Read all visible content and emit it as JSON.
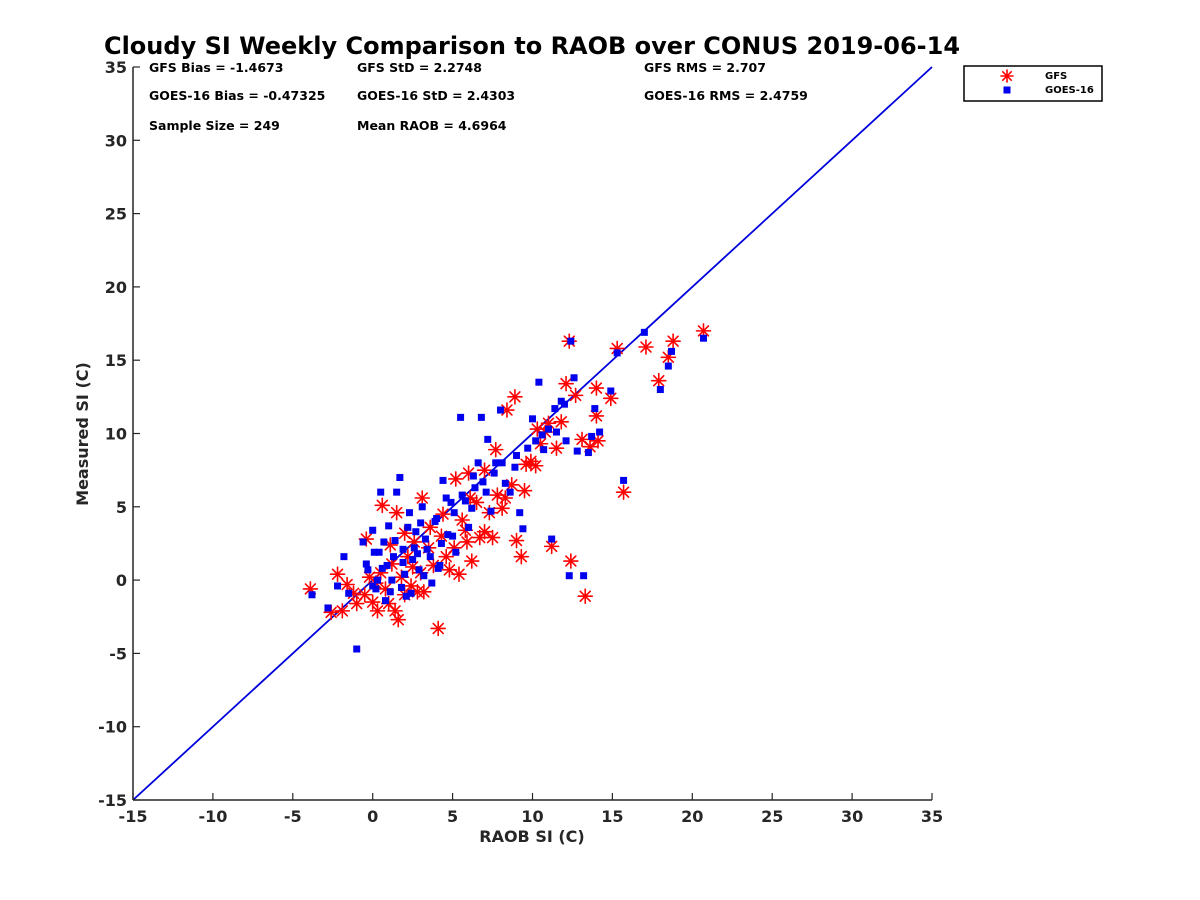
{
  "chart_data": {
    "type": "scatter",
    "title": "Cloudy SI Weekly Comparison to RAOB over CONUS 2019-06-14",
    "xlabel": "RAOB SI (C)",
    "ylabel": "Measured SI (C)",
    "xlim": [
      -15,
      35
    ],
    "ylim": [
      -15,
      35
    ],
    "xticks": [
      -15,
      -10,
      -5,
      0,
      5,
      10,
      15,
      20,
      25,
      30,
      35
    ],
    "yticks": [
      -15,
      -10,
      -5,
      0,
      5,
      10,
      15,
      20,
      25,
      30,
      35
    ],
    "grid": false,
    "legend_placement": "outside-top-right",
    "reference_line": {
      "x": [
        -15,
        35
      ],
      "y": [
        -15,
        35
      ],
      "color": "#0000dd"
    },
    "stats": [
      "GFS Bias = -1.4673",
      "GFS StD = 2.2748",
      "GFS RMS = 2.707",
      "GOES-16 Bias = -0.47325",
      "GOES-16 StD = 2.4303",
      "GOES-16 RMS = 2.4759",
      "Sample Size = 249",
      "Mean RAOB = 4.6964"
    ],
    "series": [
      {
        "name": "GFS",
        "marker": "asterisk",
        "color": "#ff0000",
        "points": [
          [
            -3.9,
            -0.6
          ],
          [
            -2.6,
            -2.2
          ],
          [
            -2.2,
            0.4
          ],
          [
            -1.9,
            -2.1
          ],
          [
            -1.6,
            -0.3
          ],
          [
            -1.0,
            -1.6
          ],
          [
            -0.5,
            -1.0
          ],
          [
            -0.2,
            0.2
          ],
          [
            0.0,
            -1.5
          ],
          [
            0.3,
            -2.1
          ],
          [
            0.5,
            0.5
          ],
          [
            0.8,
            -0.6
          ],
          [
            1.0,
            -1.6
          ],
          [
            1.2,
            1.1
          ],
          [
            1.4,
            -2.1
          ],
          [
            1.6,
            -2.7
          ],
          [
            1.8,
            0.2
          ],
          [
            2.0,
            -1.0
          ],
          [
            2.2,
            1.6
          ],
          [
            2.4,
            -0.4
          ],
          [
            2.6,
            2.6
          ],
          [
            2.8,
            -0.8
          ],
          [
            3.0,
            0.5
          ],
          [
            3.2,
            -0.8
          ],
          [
            3.5,
            2.2
          ],
          [
            3.8,
            1.0
          ],
          [
            4.1,
            -3.3
          ],
          [
            4.3,
            3.0
          ],
          [
            4.6,
            1.6
          ],
          [
            4.8,
            0.7
          ],
          [
            5.1,
            2.2
          ],
          [
            5.4,
            0.4
          ],
          [
            5.6,
            4.1
          ],
          [
            5.9,
            2.6
          ],
          [
            6.2,
            1.3
          ],
          [
            6.5,
            5.3
          ],
          [
            6.7,
            2.9
          ],
          [
            7.0,
            3.3
          ],
          [
            7.3,
            4.6
          ],
          [
            7.5,
            2.9
          ],
          [
            7.8,
            5.8
          ],
          [
            8.1,
            4.9
          ],
          [
            8.3,
            5.6
          ],
          [
            8.7,
            6.5
          ],
          [
            9.0,
            2.7
          ],
          [
            9.3,
            1.6
          ],
          [
            9.6,
            7.9
          ],
          [
            9.9,
            8.1
          ],
          [
            10.2,
            7.8
          ],
          [
            10.5,
            9.3
          ],
          [
            10.8,
            10.1
          ],
          [
            11.2,
            2.3
          ],
          [
            11.5,
            9.0
          ],
          [
            11.8,
            10.8
          ],
          [
            12.1,
            13.4
          ],
          [
            12.4,
            1.3
          ],
          [
            12.7,
            12.6
          ],
          [
            13.1,
            9.6
          ],
          [
            13.3,
            -1.1
          ],
          [
            13.6,
            9.1
          ],
          [
            14.0,
            13.1
          ],
          [
            14.1,
            9.5
          ],
          [
            14.9,
            12.4
          ],
          [
            15.3,
            15.8
          ],
          [
            15.7,
            6.0
          ],
          [
            17.1,
            15.9
          ],
          [
            17.9,
            13.6
          ],
          [
            18.5,
            15.2
          ],
          [
            18.8,
            16.3
          ],
          [
            20.7,
            17.0
          ],
          [
            12.3,
            16.3
          ],
          [
            8.9,
            12.5
          ],
          [
            6.0,
            7.3
          ],
          [
            5.2,
            6.9
          ],
          [
            1.5,
            4.6
          ],
          [
            3.1,
            5.6
          ],
          [
            0.6,
            5.1
          ],
          [
            7.0,
            7.5
          ],
          [
            9.5,
            6.1
          ],
          [
            10.3,
            10.3
          ],
          [
            4.4,
            4.5
          ],
          [
            2.0,
            3.2
          ],
          [
            -0.4,
            2.8
          ],
          [
            1.1,
            2.4
          ],
          [
            3.6,
            3.6
          ],
          [
            6.1,
            5.6
          ],
          [
            7.7,
            8.9
          ],
          [
            11.0,
            10.7
          ],
          [
            -1.2,
            -0.9
          ],
          [
            0.2,
            -0.2
          ],
          [
            2.5,
            0.9
          ],
          [
            5.8,
            3.4
          ],
          [
            8.4,
            11.6
          ],
          [
            14.0,
            11.2
          ]
        ]
      },
      {
        "name": "GOES-16",
        "marker": "square",
        "color": "#0000ee",
        "points": [
          [
            -3.8,
            -1.0
          ],
          [
            -2.8,
            -1.9
          ],
          [
            -2.2,
            -0.4
          ],
          [
            -1.8,
            1.6
          ],
          [
            -1.5,
            -0.9
          ],
          [
            -1.0,
            -4.7
          ],
          [
            -0.6,
            2.6
          ],
          [
            -0.3,
            0.7
          ],
          [
            0.0,
            3.4
          ],
          [
            0.2,
            -0.6
          ],
          [
            0.4,
            1.9
          ],
          [
            0.5,
            6.0
          ],
          [
            0.8,
            -1.4
          ],
          [
            1.0,
            3.7
          ],
          [
            1.2,
            0.0
          ],
          [
            1.5,
            6.0
          ],
          [
            1.7,
            7.0
          ],
          [
            1.9,
            2.1
          ],
          [
            2.1,
            -1.1
          ],
          [
            2.3,
            4.6
          ],
          [
            2.5,
            1.4
          ],
          [
            2.7,
            3.3
          ],
          [
            2.9,
            0.7
          ],
          [
            3.1,
            5.0
          ],
          [
            3.4,
            2.1
          ],
          [
            3.7,
            -0.2
          ],
          [
            3.9,
            4.0
          ],
          [
            4.2,
            1.0
          ],
          [
            4.4,
            6.8
          ],
          [
            4.7,
            3.1
          ],
          [
            4.9,
            5.3
          ],
          [
            5.2,
            1.9
          ],
          [
            5.5,
            11.1
          ],
          [
            5.8,
            5.4
          ],
          [
            6.0,
            3.6
          ],
          [
            6.3,
            7.1
          ],
          [
            6.6,
            8.0
          ],
          [
            6.8,
            11.1
          ],
          [
            7.1,
            6.0
          ],
          [
            7.4,
            4.7
          ],
          [
            7.7,
            8.0
          ],
          [
            8.0,
            11.6
          ],
          [
            8.3,
            6.6
          ],
          [
            8.6,
            6.0
          ],
          [
            8.9,
            7.7
          ],
          [
            9.2,
            4.6
          ],
          [
            9.4,
            3.5
          ],
          [
            9.7,
            9.0
          ],
          [
            10.0,
            11.0
          ],
          [
            10.2,
            9.5
          ],
          [
            10.4,
            13.5
          ],
          [
            10.7,
            8.9
          ],
          [
            11.0,
            10.3
          ],
          [
            11.2,
            2.8
          ],
          [
            11.5,
            10.1
          ],
          [
            11.8,
            12.2
          ],
          [
            12.1,
            9.5
          ],
          [
            12.3,
            0.3
          ],
          [
            12.6,
            13.8
          ],
          [
            12.8,
            8.8
          ],
          [
            13.2,
            0.3
          ],
          [
            13.5,
            8.7
          ],
          [
            13.9,
            11.7
          ],
          [
            14.2,
            10.1
          ],
          [
            14.9,
            12.9
          ],
          [
            15.3,
            15.5
          ],
          [
            15.7,
            6.8
          ],
          [
            17.0,
            16.9
          ],
          [
            18.0,
            13.0
          ],
          [
            18.5,
            14.6
          ],
          [
            18.7,
            15.6
          ],
          [
            20.7,
            16.5
          ],
          [
            12.4,
            16.3
          ],
          [
            0.3,
            0.0
          ],
          [
            0.9,
            1.0
          ],
          [
            1.4,
            2.7
          ],
          [
            2.2,
            3.6
          ],
          [
            3.3,
            2.8
          ],
          [
            4.0,
            4.2
          ],
          [
            4.6,
            5.6
          ],
          [
            5.1,
            4.6
          ],
          [
            6.4,
            6.3
          ],
          [
            7.2,
            9.6
          ],
          [
            8.1,
            8.0
          ],
          [
            0.0,
            -0.4
          ],
          [
            0.6,
            0.8
          ],
          [
            1.3,
            1.6
          ],
          [
            2.0,
            0.4
          ],
          [
            2.6,
            2.2
          ],
          [
            3.0,
            3.9
          ],
          [
            3.6,
            1.6
          ],
          [
            4.3,
            2.5
          ],
          [
            5.0,
            3.0
          ],
          [
            5.6,
            5.8
          ],
          [
            6.2,
            4.9
          ],
          [
            6.9,
            6.7
          ],
          [
            7.6,
            7.3
          ],
          [
            9.0,
            8.5
          ],
          [
            10.6,
            9.9
          ],
          [
            11.4,
            11.7
          ],
          [
            12.0,
            12.0
          ],
          [
            13.7,
            9.8
          ],
          [
            -0.4,
            1.1
          ],
          [
            0.1,
            1.9
          ],
          [
            1.8,
            -0.5
          ],
          [
            2.4,
            -0.9
          ],
          [
            3.2,
            0.3
          ],
          [
            4.1,
            0.8
          ],
          [
            0.7,
            2.6
          ],
          [
            1.1,
            -0.8
          ],
          [
            1.9,
            1.2
          ],
          [
            2.8,
            1.8
          ]
        ]
      }
    ]
  }
}
